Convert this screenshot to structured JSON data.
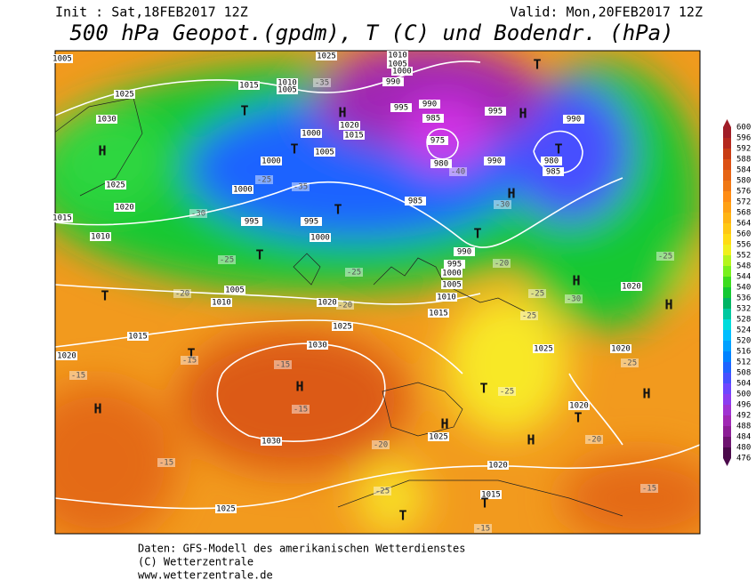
{
  "header": {
    "init": "Init : Sat,18FEB2017 12Z",
    "valid": "Valid: Mon,20FEB2017 12Z",
    "title": "500 hPa Geopot.(gpdm), T (C) und Bodendr. (hPa)"
  },
  "colorbar": {
    "levels": [
      476,
      480,
      484,
      488,
      492,
      496,
      500,
      504,
      508,
      512,
      516,
      520,
      524,
      528,
      532,
      536,
      540,
      544,
      548,
      552,
      556,
      560,
      564,
      568,
      572,
      576,
      580,
      584,
      588,
      592,
      596,
      600
    ],
    "colors": [
      "#4b0a4b",
      "#6e1470",
      "#8c1e96",
      "#a028b4",
      "#a032d2",
      "#8c3cf0",
      "#6e46ff",
      "#4650ff",
      "#1e64ff",
      "#0082ff",
      "#00a0ff",
      "#00beff",
      "#00dcdc",
      "#00c8a0",
      "#00b464",
      "#14c832",
      "#3cdc1e",
      "#78f01e",
      "#b4f51e",
      "#f0f01e",
      "#ffdc14",
      "#ffc814",
      "#ffb414",
      "#ffa014",
      "#ff8c14",
      "#f07814",
      "#e66414",
      "#dc5014",
      "#c83c14",
      "#b4281e",
      "#a01e28"
    ]
  },
  "map_labels": {
    "pressure": [
      1005,
      1025,
      1010,
      1005,
      1000,
      990,
      1025,
      1015,
      1010,
      1005,
      1030,
      1020,
      995,
      990,
      985,
      995,
      990,
      1000,
      1015,
      1005,
      1000,
      975,
      980,
      990,
      980,
      985,
      1025,
      1020,
      1000,
      995,
      995,
      985,
      1015,
      1010,
      1000,
      990,
      995,
      1000,
      1005,
      1010,
      1005,
      1010,
      1015,
      1020,
      1025,
      1015,
      1030,
      1020,
      1020,
      1020,
      1025,
      1020,
      1030,
      1025,
      1020,
      1015,
      1025
    ],
    "centers": [
      "H",
      "H",
      "H",
      "H",
      "H",
      "H",
      "H",
      "H",
      "H",
      "H",
      "H",
      "T",
      "T",
      "T",
      "T",
      "T",
      "T",
      "T",
      "T",
      "T",
      "T",
      "T",
      "T",
      "T"
    ],
    "temperature": [
      -35,
      -30,
      -25,
      -25,
      -20,
      -20,
      -15,
      -15,
      -15,
      -15,
      -15,
      -20,
      -25,
      -15,
      -20,
      -15,
      -25,
      -25,
      -25,
      -30,
      -40,
      -35,
      -25,
      -30,
      -25,
      -20,
      -25
    ]
  },
  "footer": {
    "line1": "Daten: GFS-Modell des amerikanischen Wetterdienstes",
    "line2": "(C) Wetterzentrale",
    "line3": "www.wetterzentrale.de"
  }
}
